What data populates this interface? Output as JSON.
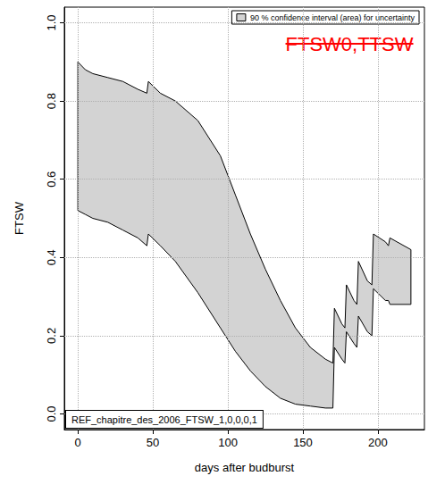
{
  "chart_data": {
    "type": "band",
    "x_label": "days after budburst",
    "y_label": "FTSW",
    "x": [
      0,
      5,
      10,
      20,
      30,
      40,
      46,
      47,
      55,
      65,
      80,
      95,
      105,
      115,
      125,
      135,
      145,
      155,
      165,
      170,
      171,
      176,
      178,
      179,
      184,
      186,
      187,
      193,
      196,
      197,
      205,
      207,
      208,
      222
    ],
    "series": [
      {
        "name": "90 % confidence interval (area) for uncertainty",
        "color": "#d3d3d3",
        "upper": [
          0.9,
          0.88,
          0.87,
          0.86,
          0.85,
          0.83,
          0.82,
          0.85,
          0.82,
          0.8,
          0.75,
          0.66,
          0.56,
          0.46,
          0.37,
          0.29,
          0.22,
          0.17,
          0.14,
          0.13,
          0.27,
          0.23,
          0.22,
          0.33,
          0.29,
          0.28,
          0.39,
          0.34,
          0.33,
          0.46,
          0.44,
          0.43,
          0.45,
          0.42
        ],
        "lower": [
          0.52,
          0.51,
          0.5,
          0.49,
          0.47,
          0.45,
          0.43,
          0.46,
          0.43,
          0.39,
          0.31,
          0.22,
          0.16,
          0.11,
          0.07,
          0.04,
          0.025,
          0.02,
          0.015,
          0.015,
          0.17,
          0.14,
          0.13,
          0.21,
          0.18,
          0.17,
          0.25,
          0.21,
          0.2,
          0.32,
          0.29,
          0.29,
          0.28,
          0.28
        ]
      }
    ],
    "xlim": [
      -9,
      231
    ],
    "xticks": [
      0,
      50,
      100,
      150,
      200
    ],
    "ylim": [
      -0.04,
      1.04
    ],
    "yticks": [
      {
        "value": 0,
        "label": "0.0"
      },
      0.2,
      0.4,
      0.6,
      0.8,
      {
        "value": 1,
        "label": "1.0"
      }
    ],
    "grid": true,
    "legend": "top-right",
    "annotations": [
      {
        "text": "FTSW0,TTSW",
        "color": "#ff0000"
      },
      {
        "text": "REF_chapitre_des_2006_FTSW_1,0,0,0,1"
      }
    ]
  }
}
